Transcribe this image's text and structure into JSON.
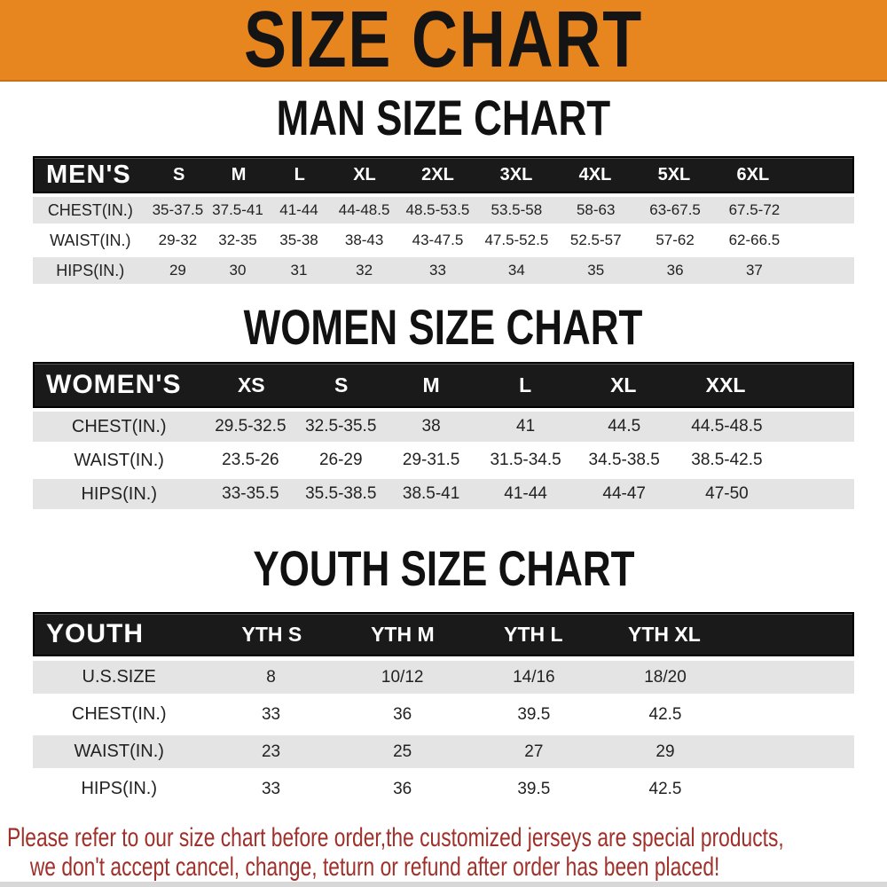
{
  "banner": {
    "title": "SIZE CHART",
    "bg_color": "#E7851F",
    "text_color": "#141414"
  },
  "sections": [
    {
      "heading": "MAN SIZE CHART",
      "header_label": "MEN'S",
      "columns": [
        "S",
        "M",
        "L",
        "XL",
        "2XL",
        "3XL",
        "4XL",
        "5XL",
        "6XL"
      ],
      "rows": [
        {
          "label": "CHEST(IN.)",
          "values": [
            "35-37.5",
            "37.5-41",
            "41-44",
            "44-48.5",
            "48.5-53.5",
            "53.5-58",
            "58-63",
            "63-67.5",
            "67.5-72"
          ]
        },
        {
          "label": "WAIST(IN.)",
          "values": [
            "29-32",
            "32-35",
            "35-38",
            "38-43",
            "43-47.5",
            "47.5-52.5",
            "52.5-57",
            "57-62",
            "62-66.5"
          ]
        },
        {
          "label": "HIPS(IN.)",
          "values": [
            "29",
            "30",
            "31",
            "32",
            "33",
            "34",
            "35",
            "36",
            "37"
          ]
        }
      ]
    },
    {
      "heading": "WOMEN SIZE CHART",
      "header_label": "WOMEN'S",
      "columns": [
        "XS",
        "S",
        "M",
        "L",
        "XL",
        "XXL"
      ],
      "rows": [
        {
          "label": "CHEST(IN.)",
          "values": [
            "29.5-32.5",
            "32.5-35.5",
            "38",
            "41",
            "44.5",
            "44.5-48.5"
          ]
        },
        {
          "label": "WAIST(IN.)",
          "values": [
            "23.5-26",
            "26-29",
            "29-31.5",
            "31.5-34.5",
            "34.5-38.5",
            "38.5-42.5"
          ]
        },
        {
          "label": "HIPS(IN.)",
          "values": [
            "33-35.5",
            "35.5-38.5",
            "38.5-41",
            "41-44",
            "44-47",
            "47-50"
          ]
        }
      ]
    },
    {
      "heading": "YOUTH SIZE CHART",
      "header_label": "YOUTH",
      "columns": [
        "YTH S",
        "YTH M",
        "YTH L",
        "YTH XL"
      ],
      "rows": [
        {
          "label": "U.S.SIZE",
          "values": [
            "8",
            "10/12",
            "14/16",
            "18/20"
          ]
        },
        {
          "label": "CHEST(IN.)",
          "values": [
            "33",
            "36",
            "39.5",
            "42.5"
          ]
        },
        {
          "label": "WAIST(IN.)",
          "values": [
            "23",
            "25",
            "27",
            "29"
          ]
        },
        {
          "label": "HIPS(IN.)",
          "values": [
            "33",
            "36",
            "39.5",
            "42.5"
          ]
        }
      ]
    }
  ],
  "disclaimer": {
    "line1": "Please refer to our size chart before order,the customized jerseys are special products,",
    "line2": "we don't accept cancel, change, teturn or refund after order has been placed!",
    "color": "#A0302A"
  },
  "colors": {
    "header_bar_bg": "#1a1a1a",
    "header_bar_text": "#ffffff",
    "zebra_row_bg": "#e4e4e4"
  }
}
